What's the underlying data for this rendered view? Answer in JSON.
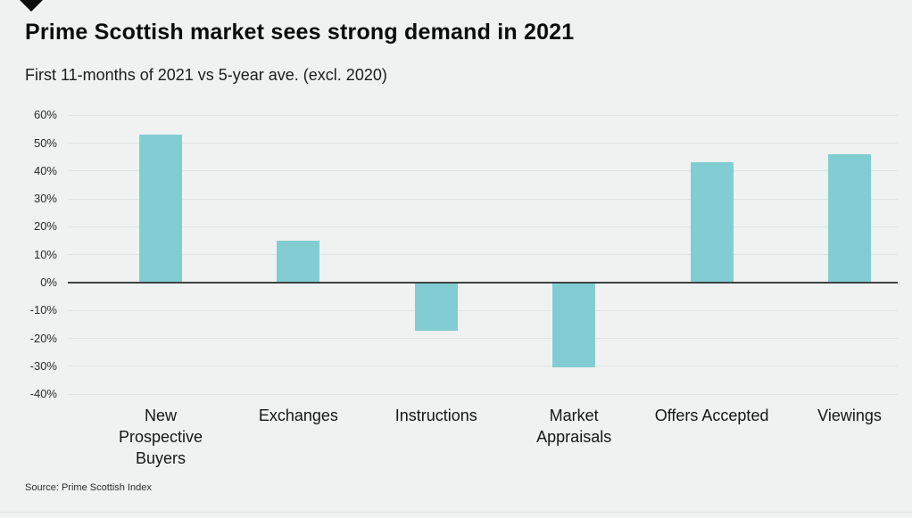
{
  "header": {
    "logo": "black-down-triangle"
  },
  "footer": {
    "source": "Source: Prime Scottish Index"
  },
  "chart_data": {
    "type": "bar",
    "title": "Prime Scottish market sees strong demand in 2021",
    "subtitle": "First 11-months of 2021 vs 5-year ave. (excl. 2020)",
    "categories": [
      "New\nProspective\nBuyers",
      "Exchanges",
      "Instructions",
      "Market\nAppraisals",
      "Offers Accepted",
      "Viewings"
    ],
    "values": [
      53,
      15,
      -17,
      -30,
      43,
      46
    ],
    "unit": "%",
    "xlabel": "",
    "ylabel": "",
    "ylim": [
      -40,
      60
    ],
    "ytick_step": 10,
    "ytick_labels": [
      "60%",
      "50%",
      "40%",
      "30%",
      "20%",
      "10%",
      "0%",
      "-10%",
      "-20%",
      "-30%",
      "-40%"
    ],
    "grid": true,
    "legend": false,
    "colors": {
      "bar": "#82cdd3",
      "zero_line": "#3d4242",
      "gridline": "#e0e5e4",
      "background": "#eff2f1"
    }
  }
}
